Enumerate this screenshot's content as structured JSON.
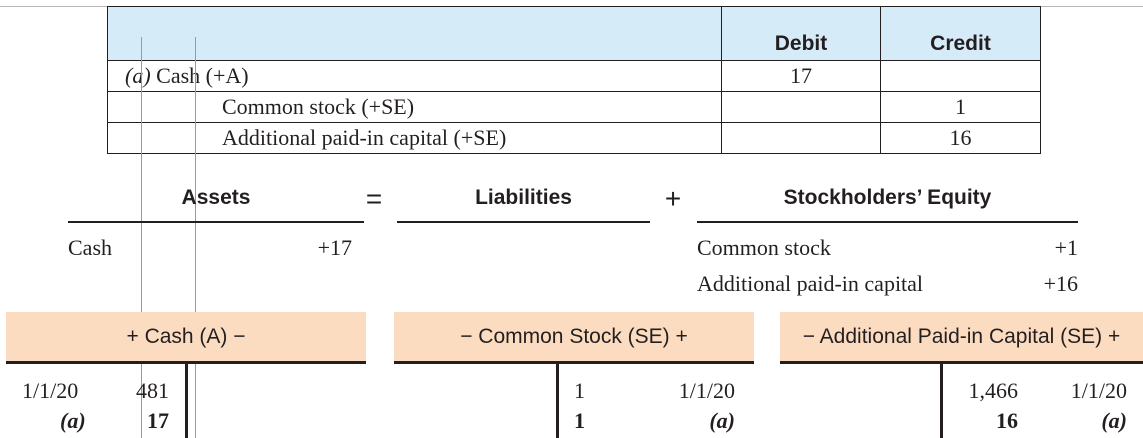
{
  "journal": {
    "headers": {
      "description": "",
      "debit": "Debit",
      "credit": "Credit"
    },
    "rows": [
      {
        "ref": "(a)",
        "account": "Cash (+A)",
        "debit": "17",
        "credit": ""
      },
      {
        "account": "Common stock (+SE)",
        "debit": "",
        "credit": "1"
      },
      {
        "account": "Additional paid-in capital (+SE)",
        "debit": "",
        "credit": "16"
      }
    ]
  },
  "equation": {
    "assets": {
      "heading": "Assets",
      "account": "Cash",
      "amount": "+17"
    },
    "equals": "=",
    "liabilities": {
      "heading": "Liabilities"
    },
    "plus": "+",
    "equity": {
      "heading": "Stockholders’ Equity",
      "lines": [
        {
          "account": "Common stock",
          "amount": "+1"
        },
        {
          "account": "Additional paid-in capital",
          "amount": "+16"
        }
      ]
    }
  },
  "t_accounts": [
    {
      "title": "+ Cash (A) −",
      "rows": [
        {
          "label": "1/1/20",
          "amount": "481"
        },
        {
          "label": "(a)",
          "amount": "17"
        }
      ]
    },
    {
      "title": "− Common Stock (SE) +",
      "rows": [
        {
          "amount": "1",
          "label": "1/1/20"
        },
        {
          "amount": "1",
          "label": "(a)"
        }
      ]
    },
    {
      "title": "− Additional Paid-in Capital (SE) +",
      "rows": [
        {
          "amount": "1,466",
          "label": "1/1/20"
        },
        {
          "amount": "16",
          "label": "(a)"
        }
      ]
    }
  ]
}
